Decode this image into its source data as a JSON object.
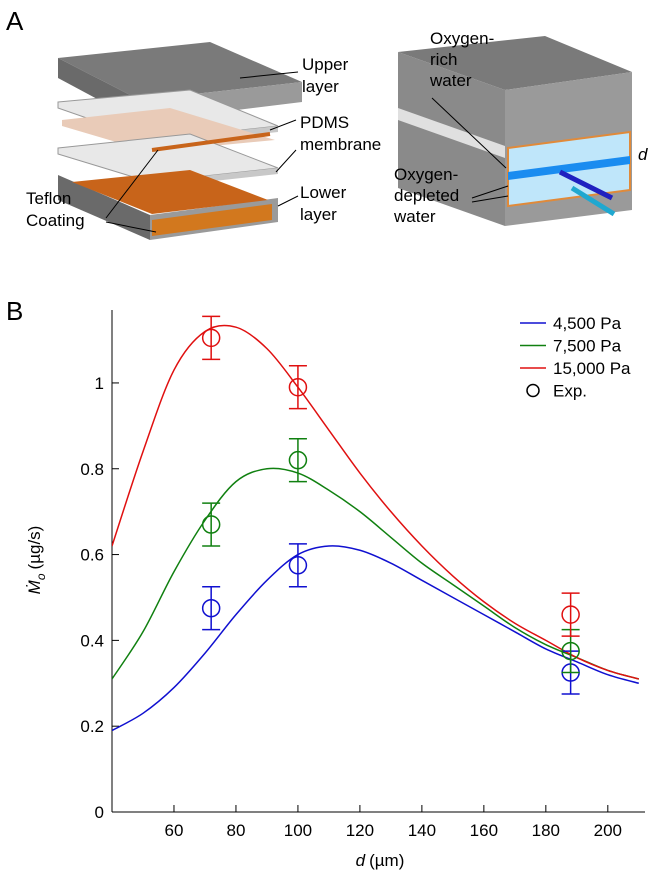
{
  "panel_a": {
    "label": "A",
    "left": {
      "upper_layer": [
        "Upper",
        "layer"
      ],
      "pdms_membrane": [
        "PDMS",
        "membrane"
      ],
      "teflon_coating": [
        "Teflon",
        "Coating"
      ],
      "lower_layer": [
        "Lower",
        "layer"
      ]
    },
    "right": {
      "oxygen_rich_water": [
        "Oxygen-",
        "rich",
        "water"
      ],
      "oxygen_depleted_water": [
        "Oxygen-",
        "depleted",
        "water"
      ],
      "gap": "d"
    }
  },
  "panel_b": {
    "label": "B"
  },
  "chart_data": {
    "type": "line",
    "x_label": {
      "symbol": "d",
      "unit": "(µm)"
    },
    "y_label": {
      "symbol": "Ṁ",
      "subscript": "o",
      "unit": "(µg/s)"
    },
    "x": [
      40,
      50,
      60,
      70,
      80,
      90,
      100,
      110,
      120,
      130,
      140,
      150,
      160,
      170,
      180,
      190,
      200,
      210
    ],
    "series": [
      {
        "name": "4,500 Pa",
        "color": "#1010d0",
        "values": [
          0.19,
          0.23,
          0.29,
          0.37,
          0.46,
          0.54,
          0.6,
          0.62,
          0.61,
          0.58,
          0.54,
          0.5,
          0.46,
          0.42,
          0.38,
          0.35,
          0.32,
          0.3
        ]
      },
      {
        "name": "7,500 Pa",
        "color": "#108010",
        "values": [
          0.31,
          0.42,
          0.56,
          0.68,
          0.77,
          0.8,
          0.79,
          0.75,
          0.7,
          0.64,
          0.58,
          0.53,
          0.48,
          0.43,
          0.39,
          0.36,
          0.33,
          0.31
        ]
      },
      {
        "name": "15,000 Pa",
        "color": "#e01010",
        "values": [
          0.62,
          0.84,
          1.03,
          1.12,
          1.13,
          1.08,
          0.99,
          0.89,
          0.79,
          0.7,
          0.62,
          0.55,
          0.49,
          0.44,
          0.4,
          0.36,
          0.33,
          0.31
        ]
      }
    ],
    "experiment": {
      "name": "Exp.",
      "color": "#000000",
      "x": [
        72,
        100,
        188
      ],
      "series": [
        {
          "color": "#1010d0",
          "values": [
            0.475,
            0.575,
            0.325
          ],
          "errors": [
            0.05,
            0.05,
            0.05
          ]
        },
        {
          "color": "#108010",
          "values": [
            0.67,
            0.82,
            0.375
          ],
          "errors": [
            0.05,
            0.05,
            0.05
          ]
        },
        {
          "color": "#e01010",
          "values": [
            1.105,
            0.99,
            0.46
          ],
          "errors": [
            0.05,
            0.05,
            0.05
          ]
        }
      ]
    },
    "xlim": [
      40,
      212
    ],
    "ylim": [
      0,
      1.17
    ],
    "xticks": [
      60,
      80,
      100,
      120,
      140,
      160,
      180,
      200
    ],
    "yticks": [
      0,
      0.2,
      0.4,
      0.6,
      0.8,
      1
    ],
    "legend": "top-right"
  }
}
